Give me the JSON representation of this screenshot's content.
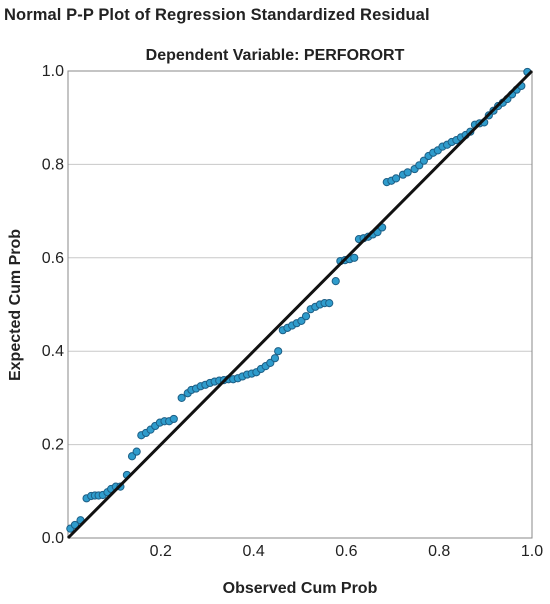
{
  "chart_data": {
    "type": "scatter",
    "title": "Normal P-P Plot of Regression Standardized Residual",
    "subtitle": "Dependent Variable: PERFORORT",
    "xlabel": "Observed Cum Prob",
    "ylabel": "Expected Cum Prob",
    "xlim": [
      0.0,
      1.0
    ],
    "ylim": [
      0.0,
      1.0
    ],
    "x_ticks": [
      "0.2",
      "0.4",
      "0.6",
      "0.8",
      "1.0"
    ],
    "y_ticks": [
      "0.0",
      "0.2",
      "0.4",
      "0.6",
      "0.8",
      "1.0"
    ],
    "grid": "horizontal",
    "reference_line": [
      [
        0.0,
        0.0
      ],
      [
        1.0,
        1.0
      ]
    ],
    "point_color": "#2f9ccc",
    "point_edge_color": "#1d5f86",
    "series": [
      {
        "x": [
          0.005,
          0.015,
          0.027,
          0.04,
          0.05,
          0.058,
          0.066,
          0.075,
          0.085,
          0.093,
          0.103,
          0.113,
          0.127,
          0.138,
          0.148,
          0.158,
          0.168,
          0.178,
          0.188,
          0.198,
          0.208,
          0.218,
          0.228,
          0.245,
          0.258,
          0.266,
          0.276,
          0.286,
          0.296,
          0.306,
          0.316,
          0.326,
          0.336,
          0.346,
          0.356,
          0.366,
          0.376,
          0.386,
          0.396,
          0.406,
          0.416,
          0.426,
          0.436,
          0.446,
          0.453,
          0.463,
          0.473,
          0.483,
          0.493,
          0.503,
          0.513,
          0.523,
          0.533,
          0.543,
          0.553,
          0.563,
          0.577,
          0.587,
          0.597,
          0.607,
          0.617,
          0.627,
          0.637,
          0.647,
          0.657,
          0.667,
          0.677,
          0.687,
          0.697,
          0.707,
          0.722,
          0.732,
          0.747,
          0.757,
          0.767,
          0.777,
          0.787,
          0.797,
          0.807,
          0.817,
          0.827,
          0.837,
          0.847,
          0.857,
          0.867,
          0.877,
          0.887,
          0.897,
          0.907,
          0.917,
          0.927,
          0.937,
          0.947,
          0.957,
          0.967,
          0.977,
          0.99
        ],
        "y": [
          0.02,
          0.028,
          0.038,
          0.085,
          0.09,
          0.091,
          0.091,
          0.092,
          0.098,
          0.105,
          0.11,
          0.11,
          0.135,
          0.175,
          0.185,
          0.22,
          0.225,
          0.232,
          0.24,
          0.247,
          0.25,
          0.25,
          0.255,
          0.3,
          0.31,
          0.317,
          0.32,
          0.325,
          0.328,
          0.332,
          0.335,
          0.337,
          0.338,
          0.34,
          0.34,
          0.342,
          0.346,
          0.35,
          0.352,
          0.355,
          0.362,
          0.368,
          0.375,
          0.385,
          0.4,
          0.445,
          0.45,
          0.455,
          0.46,
          0.465,
          0.475,
          0.49,
          0.495,
          0.5,
          0.503,
          0.503,
          0.55,
          0.593,
          0.595,
          0.597,
          0.6,
          0.64,
          0.642,
          0.645,
          0.65,
          0.655,
          0.665,
          0.762,
          0.765,
          0.77,
          0.778,
          0.783,
          0.79,
          0.798,
          0.808,
          0.818,
          0.825,
          0.83,
          0.838,
          0.842,
          0.848,
          0.852,
          0.858,
          0.863,
          0.87,
          0.885,
          0.888,
          0.89,
          0.905,
          0.915,
          0.925,
          0.932,
          0.94,
          0.95,
          0.96,
          0.968,
          0.998
        ]
      }
    ]
  }
}
